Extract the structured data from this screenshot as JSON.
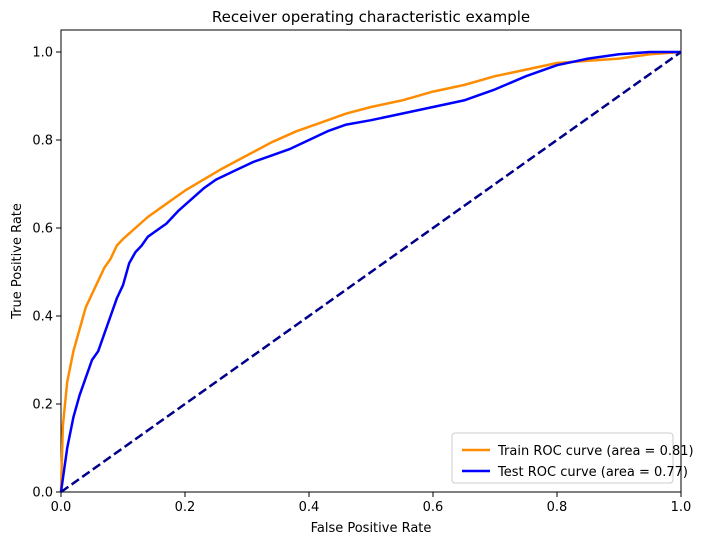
{
  "chart_data": {
    "type": "line",
    "title": "Receiver operating characteristic example",
    "xlabel": "False Positive Rate",
    "ylabel": "True Positive Rate",
    "xlim": [
      0.0,
      1.0
    ],
    "ylim": [
      0.0,
      1.05
    ],
    "xticks": [
      "0.0",
      "0.2",
      "0.4",
      "0.6",
      "0.8",
      "1.0"
    ],
    "yticks": [
      "0.0",
      "0.2",
      "0.4",
      "0.6",
      "0.8",
      "1.0"
    ],
    "grid": false,
    "legend_position": "lower right",
    "series": [
      {
        "name": "Train ROC curve (area = 0.81)",
        "color": "#ff8c00",
        "style": "solid",
        "x": [
          0.0,
          0.003,
          0.01,
          0.02,
          0.03,
          0.04,
          0.05,
          0.06,
          0.07,
          0.08,
          0.09,
          0.1,
          0.12,
          0.14,
          0.16,
          0.18,
          0.2,
          0.23,
          0.26,
          0.3,
          0.34,
          0.38,
          0.42,
          0.46,
          0.5,
          0.55,
          0.6,
          0.65,
          0.7,
          0.75,
          0.8,
          0.85,
          0.9,
          0.95,
          1.0
        ],
        "y": [
          0.0,
          0.15,
          0.25,
          0.32,
          0.37,
          0.42,
          0.45,
          0.48,
          0.51,
          0.53,
          0.56,
          0.575,
          0.6,
          0.625,
          0.645,
          0.665,
          0.685,
          0.71,
          0.735,
          0.765,
          0.795,
          0.82,
          0.84,
          0.86,
          0.875,
          0.89,
          0.91,
          0.925,
          0.945,
          0.96,
          0.975,
          0.98,
          0.985,
          0.995,
          1.0
        ]
      },
      {
        "name": "Test ROC curve (area = 0.77)",
        "color": "#0000ff",
        "style": "solid",
        "x": [
          0.0,
          0.005,
          0.01,
          0.02,
          0.03,
          0.04,
          0.05,
          0.06,
          0.07,
          0.08,
          0.09,
          0.1,
          0.11,
          0.12,
          0.13,
          0.14,
          0.15,
          0.17,
          0.19,
          0.21,
          0.23,
          0.25,
          0.28,
          0.31,
          0.34,
          0.37,
          0.4,
          0.43,
          0.46,
          0.5,
          0.55,
          0.6,
          0.65,
          0.7,
          0.75,
          0.8,
          0.85,
          0.9,
          0.95,
          1.0
        ],
        "y": [
          0.0,
          0.05,
          0.1,
          0.17,
          0.22,
          0.26,
          0.3,
          0.32,
          0.36,
          0.4,
          0.44,
          0.47,
          0.52,
          0.545,
          0.56,
          0.58,
          0.59,
          0.61,
          0.64,
          0.665,
          0.69,
          0.71,
          0.73,
          0.75,
          0.765,
          0.78,
          0.8,
          0.82,
          0.835,
          0.845,
          0.86,
          0.875,
          0.89,
          0.915,
          0.945,
          0.97,
          0.985,
          0.995,
          1.0,
          1.0
        ]
      },
      {
        "name": "",
        "color": "#00008b",
        "style": "dashed",
        "x": [
          0.0,
          1.0
        ],
        "y": [
          0.0,
          1.0
        ]
      }
    ]
  }
}
